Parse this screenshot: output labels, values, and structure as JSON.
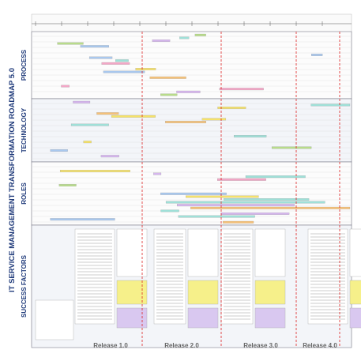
{
  "header": {
    "title": "IT SERVICE MANAGEMENT TRANSFORMATION ROADMAP 5.0"
  },
  "sections": [
    "PROCESS",
    "TECHNOLOGY",
    "ROLES",
    "SUCCESS FACTORS"
  ],
  "releases": [
    "Release 1.0",
    "Release 2.0",
    "Release 3.0",
    "Release 4.0"
  ]
}
